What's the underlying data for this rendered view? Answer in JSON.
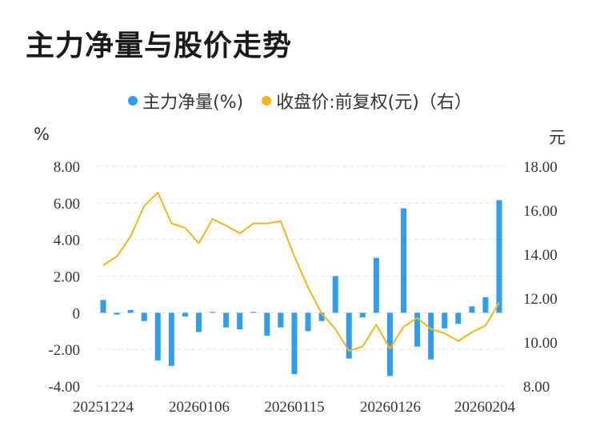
{
  "title": "主力净量与股价走势",
  "legend": {
    "bar_label": "主力净量(%)",
    "line_label": "收盘价:前复权(元)（右）",
    "bar_color": "#2f9ef0",
    "line_color": "#f5b417"
  },
  "left_unit": "%",
  "right_unit": "元",
  "chart_data": {
    "type": "bar+line",
    "x_tick_labels": [
      "20251224",
      "20260106",
      "20260115",
      "20260126",
      "20260204"
    ],
    "left_axis": {
      "ticks": [
        "8.00",
        "6.00",
        "4.00",
        "2.00",
        "0",
        "-2.00",
        "-4.00"
      ],
      "ylim": [
        -4,
        8
      ]
    },
    "right_axis": {
      "ticks": [
        "18.00",
        "16.00",
        "14.00",
        "12.00",
        "10.00",
        "8.00"
      ],
      "ylim": [
        8,
        18
      ]
    },
    "series": [
      {
        "name": "主力净量(%)",
        "type": "bar",
        "axis": "left",
        "values": [
          0.7,
          -0.1,
          0.15,
          -0.45,
          -2.6,
          -2.9,
          -0.2,
          -1.05,
          0.05,
          -0.8,
          -0.9,
          0.05,
          -1.25,
          -0.8,
          -3.35,
          -1.0,
          -0.45,
          2.0,
          -2.5,
          -0.25,
          3.0,
          -3.45,
          5.7,
          -1.85,
          -2.55,
          -0.85,
          -0.6,
          0.35,
          0.85,
          6.15
        ]
      },
      {
        "name": "收盘价:前复权(元)（右）",
        "type": "line",
        "axis": "right",
        "values": [
          13.5,
          13.9,
          14.8,
          16.2,
          16.8,
          15.4,
          15.2,
          14.5,
          15.6,
          15.3,
          14.95,
          15.4,
          15.4,
          15.5,
          13.9,
          12.5,
          11.3,
          10.6,
          9.6,
          9.8,
          10.8,
          9.7,
          10.7,
          11.1,
          10.6,
          10.4,
          10.05,
          10.45,
          10.75,
          11.8
        ]
      }
    ],
    "grid": true
  }
}
